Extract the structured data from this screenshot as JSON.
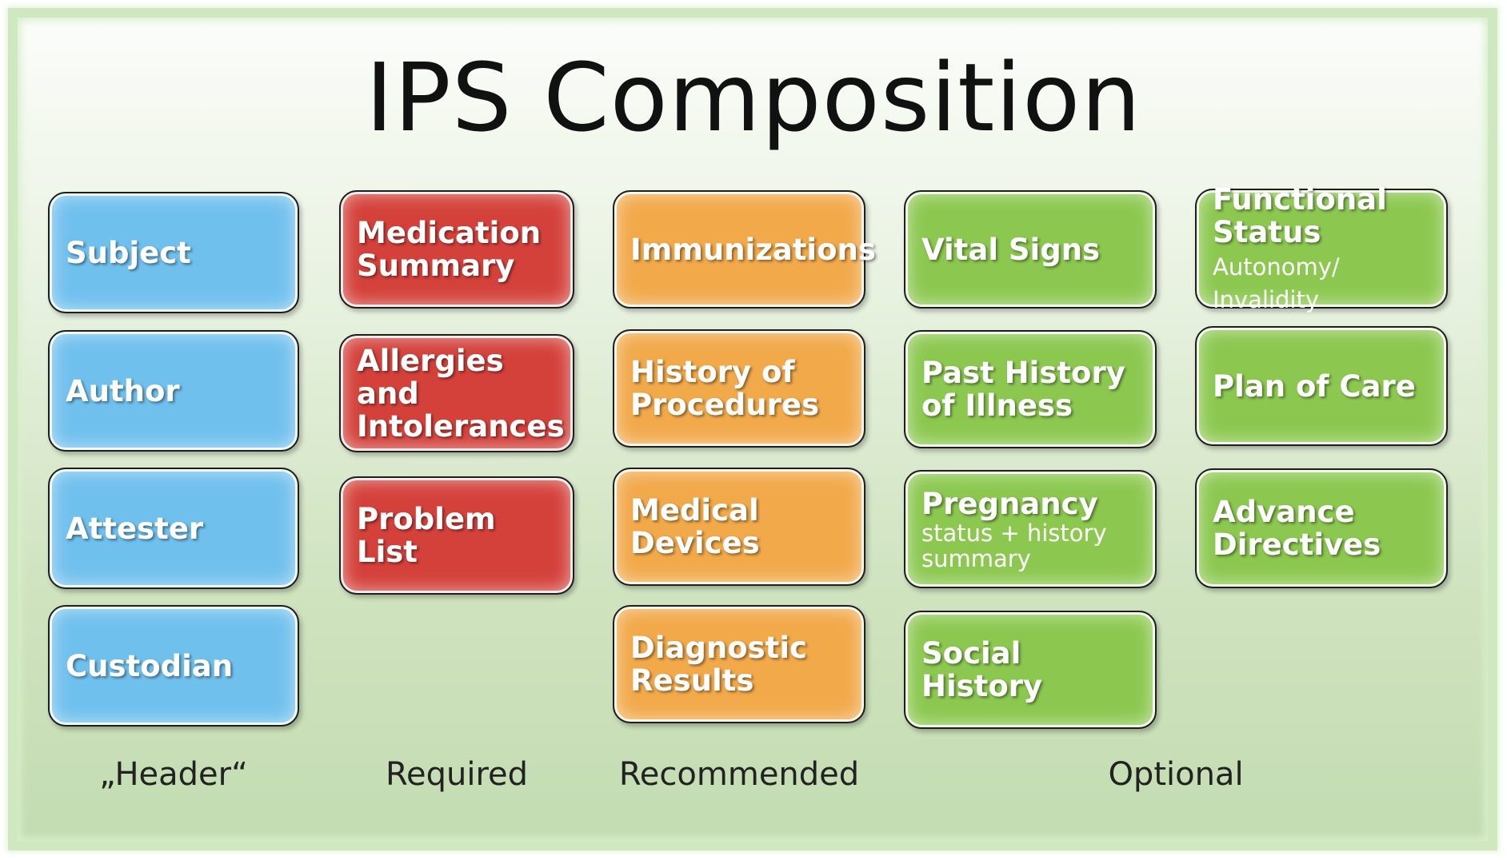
{
  "title": "IPS Composition",
  "columns": {
    "header": {
      "label": "„Header“",
      "items": [
        "Subject",
        "Author",
        "Attester",
        "Custodian"
      ]
    },
    "required": {
      "label": "Required",
      "items": [
        "Medication Summary",
        "Allergies and Intolerances",
        "Problem List"
      ]
    },
    "recommended": {
      "label": "Recommended",
      "items": [
        "Immunizations",
        "History of Procedures",
        "Medical Devices",
        "Diagnostic Results"
      ]
    },
    "optional": {
      "label": "Optional",
      "col1": [
        {
          "main": "Vital Signs"
        },
        {
          "main": "Past History of Illness"
        },
        {
          "main": "Pregnancy",
          "sub": "status + history summary"
        },
        {
          "main": "Social History"
        }
      ],
      "col2": [
        {
          "main": "Functional Status",
          "sub": "Autonomy/ Invalidity"
        },
        {
          "main": "Plan of Care"
        },
        {
          "main": "Advance Directives"
        }
      ]
    }
  },
  "colors": {
    "header": "#70c0ee",
    "required": "#d4413b",
    "recommended": "#f2a94a",
    "optional": "#8cc850"
  }
}
